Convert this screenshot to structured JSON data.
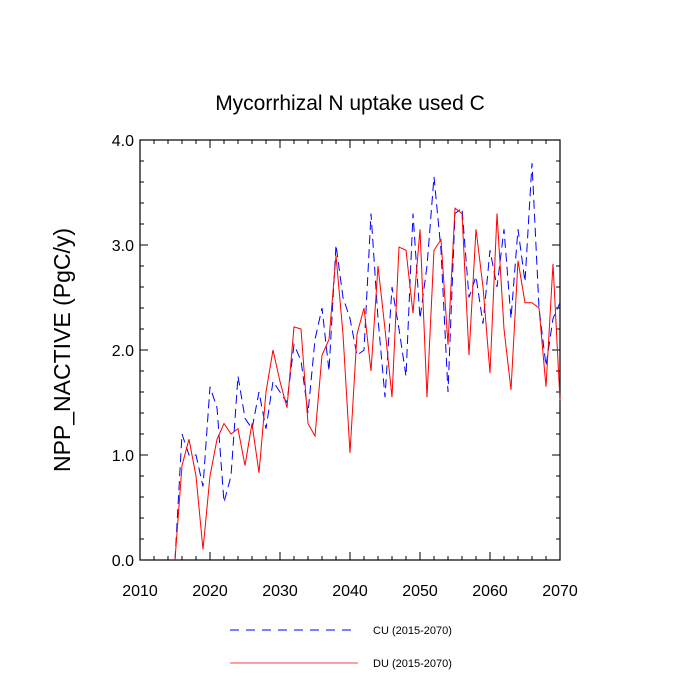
{
  "chart_data": {
    "type": "line",
    "title": "Mycorrhizal N uptake used C",
    "xlabel": "",
    "ylabel": "NPP_NACTIVE  (PgC/y)",
    "xlim": [
      2010,
      2070
    ],
    "ylim": [
      0.0,
      4.0
    ],
    "xticks": [
      2010,
      2020,
      2030,
      2040,
      2050,
      2060,
      2070
    ],
    "xtick_labels": [
      "2010",
      "2020",
      "2030",
      "2040",
      "2050",
      "2060",
      "2070"
    ],
    "yticks": [
      0.0,
      1.0,
      2.0,
      3.0,
      4.0
    ],
    "ytick_labels": [
      "0.0",
      "1.0",
      "2.0",
      "3.0",
      "4.0"
    ],
    "legend_position": "bottom",
    "x": [
      2015,
      2016,
      2017,
      2018,
      2019,
      2020,
      2021,
      2022,
      2023,
      2024,
      2025,
      2026,
      2027,
      2028,
      2029,
      2030,
      2031,
      2032,
      2033,
      2034,
      2035,
      2036,
      2037,
      2038,
      2039,
      2040,
      2041,
      2042,
      2043,
      2044,
      2045,
      2046,
      2047,
      2048,
      2049,
      2050,
      2051,
      2052,
      2053,
      2054,
      2055,
      2056,
      2057,
      2058,
      2059,
      2060,
      2061,
      2062,
      2063,
      2064,
      2065,
      2066,
      2067,
      2068,
      2069,
      2070
    ],
    "series": [
      {
        "name": "CU (2015-2070)",
        "color": "#0000ff",
        "style": "dashed",
        "values": [
          0.0,
          1.2,
          1.0,
          1.0,
          0.7,
          1.65,
          1.45,
          0.55,
          0.8,
          1.75,
          1.35,
          1.25,
          1.6,
          1.25,
          1.7,
          1.6,
          1.5,
          2.05,
          1.9,
          1.4,
          2.1,
          2.4,
          1.8,
          3.0,
          2.5,
          2.3,
          1.95,
          2.0,
          3.3,
          2.3,
          1.55,
          2.6,
          2.2,
          1.75,
          3.3,
          2.3,
          2.8,
          3.65,
          2.95,
          1.6,
          3.3,
          3.35,
          2.5,
          2.7,
          2.25,
          2.95,
          2.6,
          3.15,
          2.3,
          3.15,
          2.65,
          3.78,
          2.4,
          1.85,
          2.3,
          2.45
        ]
      },
      {
        "name": "DU (2015-2070)",
        "color": "#ff0000",
        "style": "solid",
        "values": [
          0.0,
          0.9,
          1.15,
          0.8,
          0.1,
          0.8,
          1.15,
          1.3,
          1.2,
          1.25,
          0.9,
          1.3,
          0.83,
          1.6,
          2.0,
          1.7,
          1.45,
          2.22,
          2.2,
          1.3,
          1.18,
          1.95,
          2.1,
          2.9,
          2.15,
          1.02,
          2.15,
          2.4,
          1.8,
          2.8,
          2.2,
          1.55,
          2.98,
          2.95,
          2.35,
          3.15,
          1.55,
          2.95,
          3.05,
          2.05,
          3.35,
          3.3,
          1.95,
          3.15,
          2.6,
          1.78,
          3.3,
          2.2,
          1.62,
          2.85,
          2.45,
          2.45,
          2.4,
          1.65,
          2.82,
          1.52
        ]
      }
    ]
  }
}
